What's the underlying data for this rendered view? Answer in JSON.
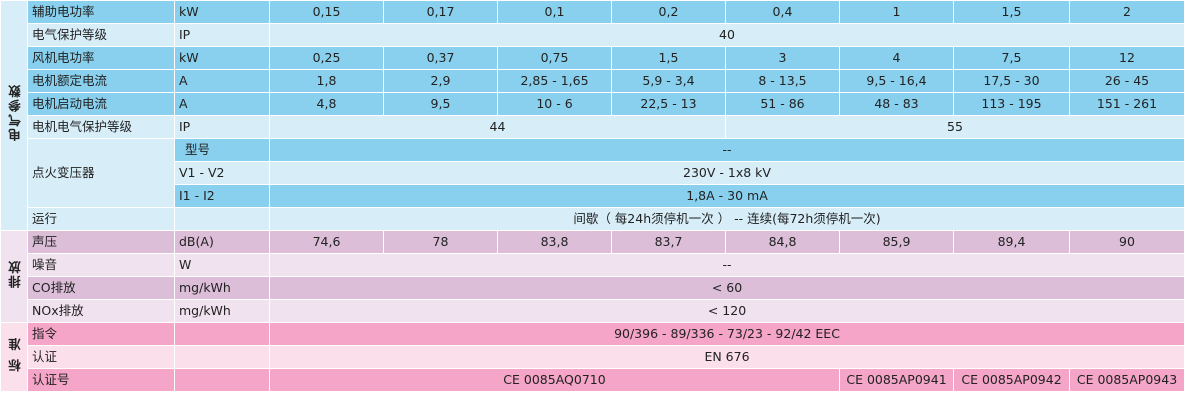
{
  "sections": {
    "electrical": "电气参数",
    "emission": "排放",
    "standards": "标 准"
  },
  "rows": {
    "aux_power": {
      "label": "辅助电功率",
      "unit": "kW",
      "values": [
        "0,15",
        "0,17",
        "0,1",
        "0,2",
        "0,4",
        "1",
        "1,5",
        "2"
      ]
    },
    "elec_protection": {
      "label": "电气保护等级",
      "unit": "IP",
      "value": "40"
    },
    "fan_power": {
      "label": "风机电功率",
      "unit": "kW",
      "values": [
        "0,25",
        "0,37",
        "0,75",
        "1,5",
        "3",
        "4",
        "7,5",
        "12"
      ]
    },
    "rated_current": {
      "label": "电机额定电流",
      "unit": "A",
      "values": [
        "1,8",
        "2,9",
        "2,85 - 1,65",
        "5,9 - 3,4",
        "8 - 13,5",
        "9,5 - 16,4",
        "17,5 - 30",
        "26 - 45"
      ]
    },
    "start_current": {
      "label": "电机启动电流",
      "unit": "A",
      "values": [
        "4,8",
        "9,5",
        "10 - 6",
        "22,5 - 13",
        "51 - 86",
        "48 - 83",
        "113 - 195",
        "151 - 261"
      ]
    },
    "motor_protection": {
      "label": "电机电气保护等级",
      "unit": "IP",
      "values": [
        "44",
        "55"
      ]
    },
    "transformer": {
      "label": "点火变压器",
      "model_label": "型号",
      "model_value": "--",
      "v_label": "V1 - V2",
      "v_value": "230V - 1x8 kV",
      "i_label": "I1 - I2",
      "i_value": "1,8A - 30 mA"
    },
    "operation": {
      "label": "运行",
      "value": "间歇（ 每24h须停机一次 ） -- 连续(每72h须停机一次)"
    },
    "sound_pressure": {
      "label": "声压",
      "unit": "dB(A)",
      "values": [
        "74,6",
        "78",
        "83,8",
        "83,7",
        "84,8",
        "85,9",
        "89,4",
        "90"
      ]
    },
    "noise": {
      "label": "噪音",
      "unit": "W",
      "value": "--"
    },
    "co": {
      "label": "CO排放",
      "unit": "mg/kWh",
      "value": "< 60"
    },
    "nox": {
      "label": "NOx排放",
      "unit": "mg/kWh",
      "value": "< 120"
    },
    "directive": {
      "label": "指令",
      "value": "90/396 - 89/336 - 73/23 - 92/42 EEC"
    },
    "certification": {
      "label": "认证",
      "value": "EN 676"
    },
    "cert_no": {
      "label": "认证号",
      "values": [
        "CE 0085AQ0710",
        "CE 0085AP0941",
        "CE 0085AP0942",
        "CE 0085AP0943"
      ]
    }
  }
}
